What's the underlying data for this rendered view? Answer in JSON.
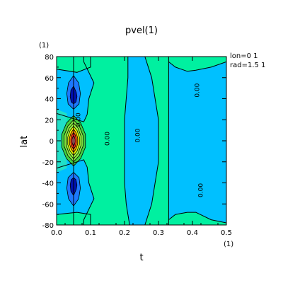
{
  "chart_data": {
    "type": "contour",
    "title": "pvel(1)",
    "xlabel": "t",
    "ylabel": "lat",
    "x_unit_label": "(1)",
    "y_unit_label": "(1)",
    "xlim": [
      0.0,
      0.5
    ],
    "ylim": [
      -80,
      80
    ],
    "x_ticks": [
      "0.0",
      "0.1",
      "0.2",
      "0.3",
      "0.4",
      "0.5"
    ],
    "y_ticks": [
      "-80",
      "-60",
      "-40",
      "-20",
      "0",
      "20",
      "40",
      "60",
      "80"
    ],
    "annotations": [
      "lon=0  1",
      "rad=1.5  1"
    ],
    "contour_labels": [
      {
        "text": "0.00",
        "x": 0.07,
        "y": 20
      },
      {
        "text": "0.00",
        "x": 0.155,
        "y": 2
      },
      {
        "text": "0.00",
        "x": 0.245,
        "y": 5
      },
      {
        "text": "0.00",
        "x": 0.42,
        "y": 48
      },
      {
        "text": "0.00",
        "x": 0.43,
        "y": -47
      }
    ],
    "grid": false,
    "colors": {
      "cyan_low": "#00c0ff",
      "teal_zero": "#00f0a0",
      "blue_mid": "#1c78ff",
      "navy_min": "#0010b0",
      "green": "#40d040",
      "lime": "#a0ff40",
      "yellow": "#f0f000",
      "orange": "#ff9000",
      "red": "#ff2020",
      "pink": "#ff9090"
    }
  }
}
